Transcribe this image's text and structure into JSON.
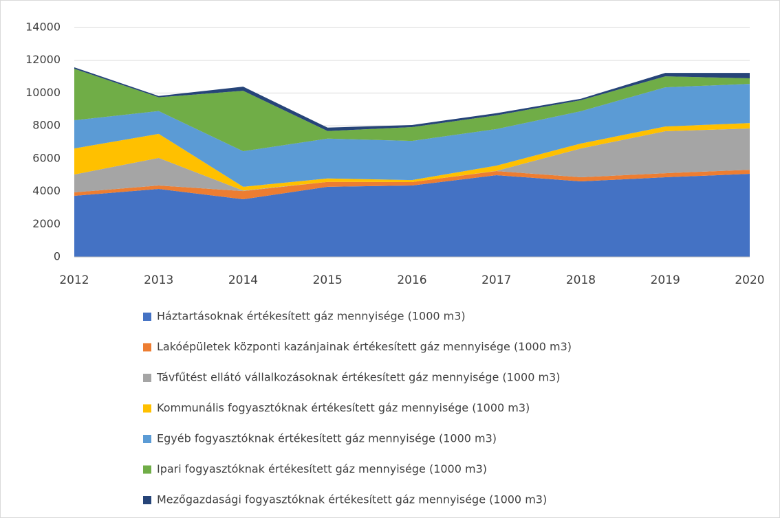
{
  "chart_data": {
    "type": "stacked_area",
    "categories": [
      "2012",
      "2013",
      "2014",
      "2015",
      "2016",
      "2017",
      "2018",
      "2019",
      "2020"
    ],
    "series": [
      {
        "name": "Háztartásoknak értékesített gáz mennyisége (1000 m3)",
        "color": "#4472c4",
        "values": [
          3730,
          4150,
          3520,
          4280,
          4360,
          4990,
          4610,
          4860,
          5070
        ]
      },
      {
        "name": "Lakóépületek központi kazánjainak értékesített gáz mennyisége (1000 m3)",
        "color": "#ed7d31",
        "values": [
          210,
          210,
          500,
          300,
          210,
          250,
          250,
          250,
          250
        ]
      },
      {
        "name": "Távfűtést ellátó vállalkozásoknak értékesített gáz mennyisége (1000 m3)",
        "color": "#a5a5a5",
        "values": [
          1090,
          1680,
          30,
          0,
          0,
          10,
          1760,
          2560,
          2520
        ]
      },
      {
        "name": "Kommunális fogyasztóknak értékesített gáz mennyisége (1000 m3)",
        "color": "#ffc000",
        "values": [
          1590,
          1470,
          230,
          210,
          120,
          320,
          300,
          290,
          330
        ]
      },
      {
        "name": "Egyéb fogyasztóknak értékesített gáz mennyisége (1000 m3)",
        "color": "#5b9bd5",
        "values": [
          1720,
          1390,
          2170,
          2430,
          2390,
          2230,
          1970,
          2390,
          2390
        ]
      },
      {
        "name": "Ipari fogyasztóknak értékesített gáz mennyisége (1000 m3)",
        "color": "#70ad47",
        "values": [
          3140,
          840,
          3690,
          460,
          840,
          840,
          670,
          670,
          340
        ]
      },
      {
        "name": "Mezőgazdasági fogyasztóknak értékesített gáz mennyisége (1000 m3)",
        "color": "#264478",
        "values": [
          90,
          80,
          250,
          210,
          130,
          130,
          90,
          210,
          330
        ]
      }
    ],
    "ylim": [
      0,
      14000
    ],
    "yticks": [
      0,
      2000,
      4000,
      6000,
      8000,
      10000,
      12000,
      14000
    ],
    "grid": true
  }
}
